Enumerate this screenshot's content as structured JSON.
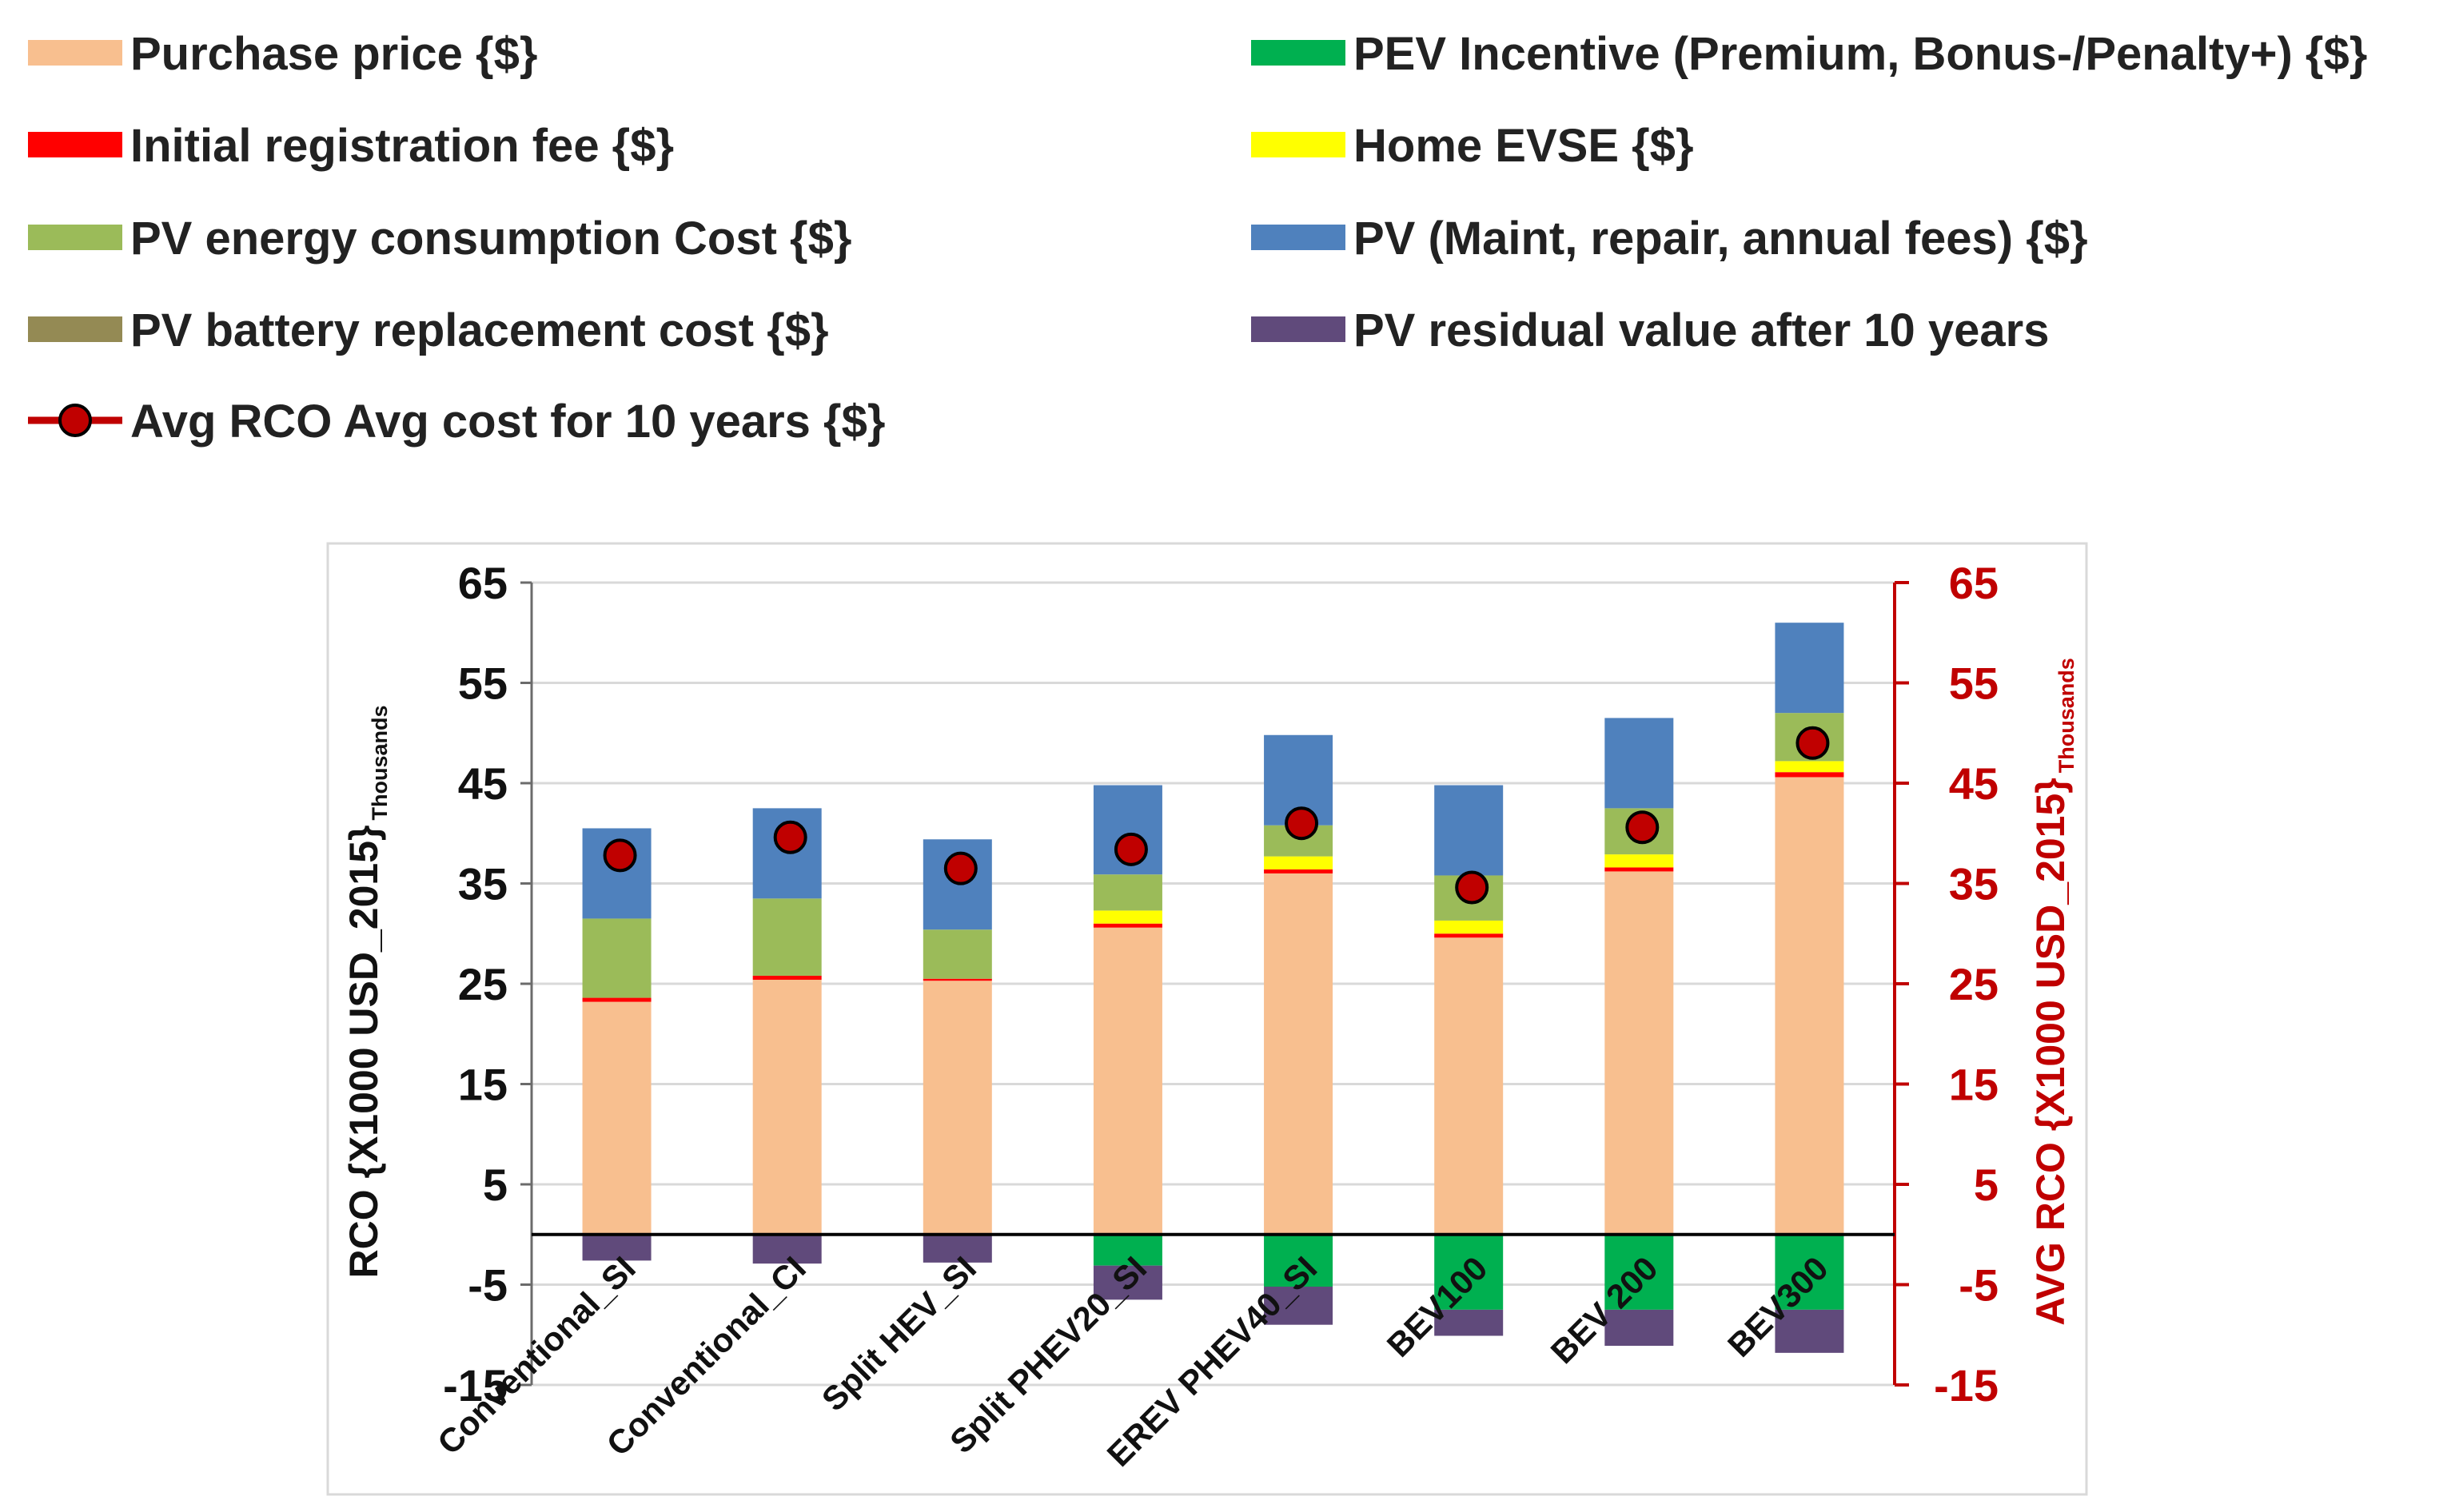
{
  "chart_data": {
    "type": "bar",
    "stacked": true,
    "categories": [
      "Conventional_SI",
      "Conventional_CI",
      "Split HEV_SI",
      "Split PHEV20_SI",
      "EREV PHEV40_SI",
      "BEV100",
      "BEV 200",
      "BEV300"
    ],
    "series": [
      {
        "name": "Purchase price {$}",
        "color": "#F8BF8F",
        "values": [
          23.2,
          25.4,
          25.3,
          30.6,
          36.0,
          29.6,
          36.2,
          45.6
        ]
      },
      {
        "name": "Initial registration fee {$}",
        "color": "#FF0000",
        "values": [
          0.4,
          0.4,
          0.2,
          0.4,
          0.4,
          0.4,
          0.4,
          0.5
        ]
      },
      {
        "name": "Home EVSE {$}",
        "color": "#FFFF00",
        "values": [
          0,
          0,
          0,
          1.3,
          1.3,
          1.3,
          1.3,
          1.1
        ]
      },
      {
        "name": "PV energy consumption Cost {$}",
        "color": "#9BBB59",
        "values": [
          7.9,
          7.7,
          4.9,
          3.6,
          3.1,
          4.5,
          4.6,
          4.8
        ]
      },
      {
        "name": "PV battery replacement cost {$}",
        "color": "#948A54",
        "values": [
          0,
          0,
          0,
          0,
          0,
          0,
          0,
          0
        ]
      },
      {
        "name": "PV (Maint, repair, annual fees) {$}",
        "color": "#4F81BD",
        "values": [
          9.0,
          9.0,
          9.0,
          8.9,
          9.0,
          9.0,
          9.0,
          9.0
        ]
      },
      {
        "name": "PEV Incentive (Premium, Bonus-/Penalty+) {$}",
        "color": "#00B050",
        "values": [
          0,
          0,
          0,
          -3.1,
          -5.2,
          -7.5,
          -7.5,
          -7.5
        ]
      },
      {
        "name": "PV residual value after 10 years",
        "color": "#604A7B",
        "values": [
          -2.6,
          -2.9,
          -2.8,
          -3.4,
          -3.8,
          -2.6,
          -3.6,
          -4.3
        ]
      }
    ],
    "line_series": {
      "name": "Avg RCO Avg cost for 10 years {$}",
      "axis": "right",
      "line_color": "#C00000",
      "marker_color": "#C00000",
      "values": [
        37.8,
        39.6,
        36.5,
        38.4,
        41.0,
        34.6,
        40.6,
        49.0
      ]
    },
    "legend": {
      "placement": "top",
      "left_column": [
        "Purchase price {$}",
        "Initial registration fee {$}",
        "PV energy consumption Cost {$}",
        "PV battery replacement cost {$}",
        "Avg RCO Avg cost for 10 years {$}"
      ],
      "right_column": [
        "PEV Incentive (Premium, Bonus-/Penalty+) {$}",
        "Home EVSE {$}",
        "PV (Maint, repair, annual fees) {$}",
        "PV residual value after 10 years"
      ]
    },
    "ylabel": "RCO {X1000 USD_2015}",
    "ylabel_unit": "Thousands",
    "y2label": "AVG RCO {X1000 USD_2015}",
    "y2label_unit": "Thousands",
    "ylim": [
      -15,
      65
    ],
    "yticks": [
      65,
      55,
      45,
      35,
      25,
      15,
      5,
      -5,
      -15
    ],
    "y2lim": [
      -15,
      65
    ],
    "y2ticks": [
      65,
      55,
      45,
      35,
      25,
      15,
      5,
      -5,
      -15
    ],
    "grid": true,
    "colors": {
      "left_axis": "#111111",
      "right_axis": "#C00000",
      "grid": "#D9D9D9",
      "frame": "#D9D9D9"
    }
  }
}
